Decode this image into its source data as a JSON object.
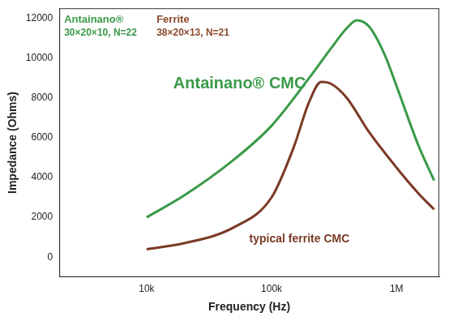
{
  "chart_data": {
    "type": "line",
    "x_label": "Frequency (Hz)",
    "y_label": "Impedance (Ohms)",
    "log": "x",
    "grid": false,
    "xlim": [
      2000,
      2200000
    ],
    "xticks": [
      {
        "value": 10000,
        "label": "10k"
      },
      {
        "value": 100000,
        "label": "100k"
      },
      {
        "value": 1000000,
        "label": "1M"
      }
    ],
    "ylim": [
      -1000,
      12500
    ],
    "yticks": [
      0,
      2000,
      4000,
      6000,
      8000,
      10000,
      12000
    ],
    "series": [
      {
        "name": "Antainano® CMC",
        "color": "#3a9a48",
        "x": [
          10000,
          20000,
          50000,
          100000,
          200000,
          300000,
          400000,
          480000,
          600000,
          800000,
          1000000,
          1500000,
          2000000
        ],
        "values": [
          2000,
          3100,
          4900,
          6600,
          9000,
          10500,
          11500,
          11900,
          11600,
          10200,
          8600,
          5600,
          3850
        ]
      },
      {
        "name": "typical ferrite CMC",
        "color": "#7b3a26",
        "x": [
          10000,
          20000,
          50000,
          100000,
          150000,
          200000,
          250000,
          300000,
          400000,
          600000,
          1000000,
          1500000,
          2000000
        ],
        "values": [
          400,
          700,
          1500,
          3000,
          5500,
          7800,
          8800,
          8700,
          8000,
          6300,
          4500,
          3200,
          2400
        ]
      }
    ],
    "annotations": [
      {
        "text": "Antainano®",
        "color": "#3a9a48"
      },
      {
        "text": "30×20×10, N=22",
        "color": "#3a9a48"
      },
      {
        "text": "Ferrite",
        "color": "#8b4a2b"
      },
      {
        "text": "38×20×13, N=21",
        "color": "#8b4a2b"
      }
    ]
  }
}
